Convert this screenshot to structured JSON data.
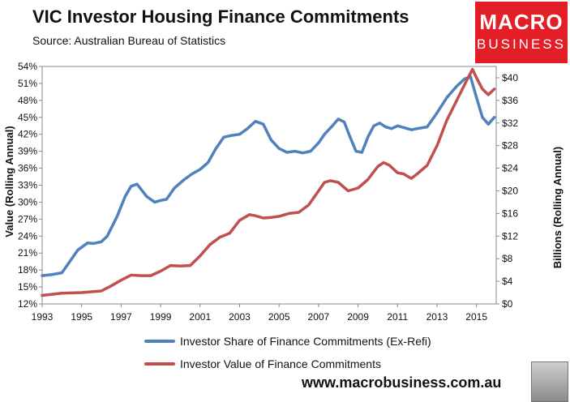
{
  "header": {
    "title": "VIC Investor Housing Finance Commitments",
    "subtitle": "Source: Australian Bureau of Statistics",
    "logo_line1": "MACRO",
    "logo_line2": "BUSINESS"
  },
  "footer": {
    "website": "www.macrobusiness.com.au"
  },
  "chart_data": {
    "type": "line",
    "ylabel": "Value (Rolling Annual)",
    "y2label": "Billions (Rolling Annual)",
    "xticks": [
      "1993",
      "1995",
      "1997",
      "1999",
      "2001",
      "2003",
      "2005",
      "2007",
      "2009",
      "2011",
      "2013",
      "2015"
    ],
    "ylim": [
      12,
      54
    ],
    "yticks": [
      "12%",
      "15%",
      "18%",
      "21%",
      "24%",
      "27%",
      "30%",
      "33%",
      "36%",
      "39%",
      "42%",
      "45%",
      "48%",
      "51%",
      "54%"
    ],
    "y2lim": [
      0,
      42
    ],
    "y2ticks": [
      "$0",
      "$4",
      "$8",
      "$12",
      "$16",
      "$20",
      "$24",
      "$28",
      "$32",
      "$36",
      "$40"
    ],
    "xlim": [
      1993,
      2016
    ],
    "grid": false,
    "legend_position": "bottom",
    "colors": {
      "share": "#4f81bd",
      "value": "#c0504d"
    },
    "series": [
      {
        "name": "Investor Share of Finance Commitments (Ex-Refi)",
        "axis": "left",
        "x": [
          1993.0,
          1993.5,
          1994.0,
          1994.5,
          1994.8,
          1995.3,
          1995.6,
          1996.0,
          1996.3,
          1996.8,
          1997.2,
          1997.5,
          1997.8,
          1998.3,
          1998.7,
          1999.0,
          1999.3,
          1999.7,
          2000.2,
          2000.6,
          2001.0,
          2001.4,
          2001.8,
          2002.2,
          2002.6,
          2003.0,
          2003.4,
          2003.8,
          2004.2,
          2004.6,
          2005.0,
          2005.4,
          2005.8,
          2006.2,
          2006.6,
          2007.0,
          2007.3,
          2007.7,
          2008.0,
          2008.3,
          2008.6,
          2008.9,
          2009.2,
          2009.5,
          2009.8,
          2010.1,
          2010.4,
          2010.7,
          2011.0,
          2011.3,
          2011.7,
          2012.0,
          2012.5,
          2013.0,
          2013.5,
          2014.0,
          2014.4,
          2014.7,
          2015.0,
          2015.3,
          2015.6,
          2015.9
        ],
        "values": [
          17.0,
          17.2,
          17.5,
          20.0,
          21.5,
          22.8,
          22.7,
          23.0,
          24.0,
          27.5,
          31.0,
          32.8,
          33.2,
          31.0,
          30.0,
          30.3,
          30.5,
          32.5,
          34.0,
          35.0,
          35.8,
          37.0,
          39.5,
          41.5,
          41.8,
          42.0,
          43.0,
          44.3,
          43.8,
          41.0,
          39.5,
          38.8,
          39.0,
          38.7,
          39.0,
          40.5,
          42.0,
          43.5,
          44.7,
          44.2,
          41.5,
          39.0,
          38.8,
          41.5,
          43.5,
          44.0,
          43.3,
          43.0,
          43.5,
          43.2,
          42.8,
          43.0,
          43.3,
          45.8,
          48.5,
          50.5,
          51.8,
          52.2,
          48.5,
          45.0,
          43.8,
          45.0
        ]
      },
      {
        "name": "Investor Value of Finance Commitments",
        "axis": "right",
        "x": [
          1993.0,
          1994.0,
          1995.0,
          1996.0,
          1996.5,
          1997.0,
          1997.5,
          1998.0,
          1998.5,
          1999.0,
          1999.5,
          2000.0,
          2000.5,
          2001.0,
          2001.5,
          2002.0,
          2002.5,
          2003.0,
          2003.5,
          2003.8,
          2004.2,
          2004.6,
          2005.0,
          2005.5,
          2006.0,
          2006.5,
          2007.0,
          2007.3,
          2007.6,
          2008.0,
          2008.5,
          2009.0,
          2009.5,
          2010.0,
          2010.3,
          2010.6,
          2011.0,
          2011.3,
          2011.7,
          2012.0,
          2012.5,
          2013.0,
          2013.5,
          2014.0,
          2014.5,
          2014.8,
          2015.0,
          2015.3,
          2015.6,
          2015.9
        ],
        "values": [
          1.5,
          1.9,
          2.0,
          2.3,
          3.2,
          4.2,
          5.1,
          5.0,
          5.0,
          5.8,
          6.8,
          6.7,
          6.8,
          8.5,
          10.5,
          11.8,
          12.5,
          14.8,
          15.8,
          15.6,
          15.2,
          15.3,
          15.5,
          16.0,
          16.2,
          17.5,
          20.0,
          21.5,
          21.8,
          21.5,
          20.0,
          20.5,
          22.0,
          24.3,
          25.0,
          24.5,
          23.2,
          23.0,
          22.2,
          23.0,
          24.5,
          28.0,
          32.5,
          36.0,
          39.5,
          41.5,
          40.0,
          38.0,
          37.0,
          38.0
        ]
      }
    ]
  }
}
